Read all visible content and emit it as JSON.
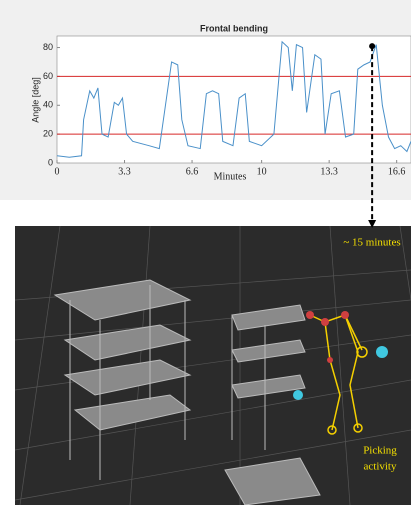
{
  "chart_data": {
    "type": "line",
    "title": "Frontal bending",
    "x_label": "Minutes",
    "y_label": "Angle [deg]",
    "xlim": [
      0,
      17.3
    ],
    "ylim": [
      0,
      88
    ],
    "xticks": [
      0,
      3.3,
      6.6,
      10,
      13.3,
      16.6
    ],
    "yticks": [
      0,
      20,
      40,
      60,
      80
    ],
    "reference_lines": [
      20,
      60
    ],
    "reference_color": "#d62728",
    "marker": {
      "x": 15.4,
      "y": 81
    },
    "series": [
      {
        "name": "Frontal bending",
        "color": "#4a90c9",
        "x": [
          0,
          0.6,
          1.2,
          1.3,
          1.6,
          1.8,
          2.0,
          2.2,
          2.5,
          2.8,
          3.0,
          3.2,
          3.4,
          3.7,
          4.5,
          5.0,
          5.3,
          5.6,
          5.9,
          6.1,
          6.4,
          7.0,
          7.3,
          7.6,
          7.9,
          8.1,
          8.6,
          8.9,
          9.2,
          9.4,
          10.0,
          10.6,
          11.0,
          11.3,
          11.5,
          11.7,
          12.0,
          12.2,
          12.6,
          12.9,
          13.1,
          13.4,
          13.8,
          14.1,
          14.5,
          14.7,
          15.0,
          15.3,
          15.6,
          15.9,
          16.2,
          16.5,
          16.8,
          17.1,
          17.3
        ],
        "values": [
          5,
          4,
          5,
          30,
          50,
          45,
          52,
          20,
          18,
          42,
          40,
          45,
          20,
          15,
          12,
          10,
          40,
          70,
          68,
          30,
          12,
          10,
          48,
          50,
          48,
          15,
          12,
          45,
          48,
          15,
          12,
          20,
          84,
          80,
          50,
          82,
          80,
          35,
          75,
          72,
          20,
          48,
          50,
          18,
          20,
          65,
          68,
          70,
          82,
          40,
          18,
          10,
          12,
          8,
          15
        ]
      }
    ],
    "annotations": [
      "~ 15 minutes",
      "Picking",
      "activity"
    ]
  }
}
